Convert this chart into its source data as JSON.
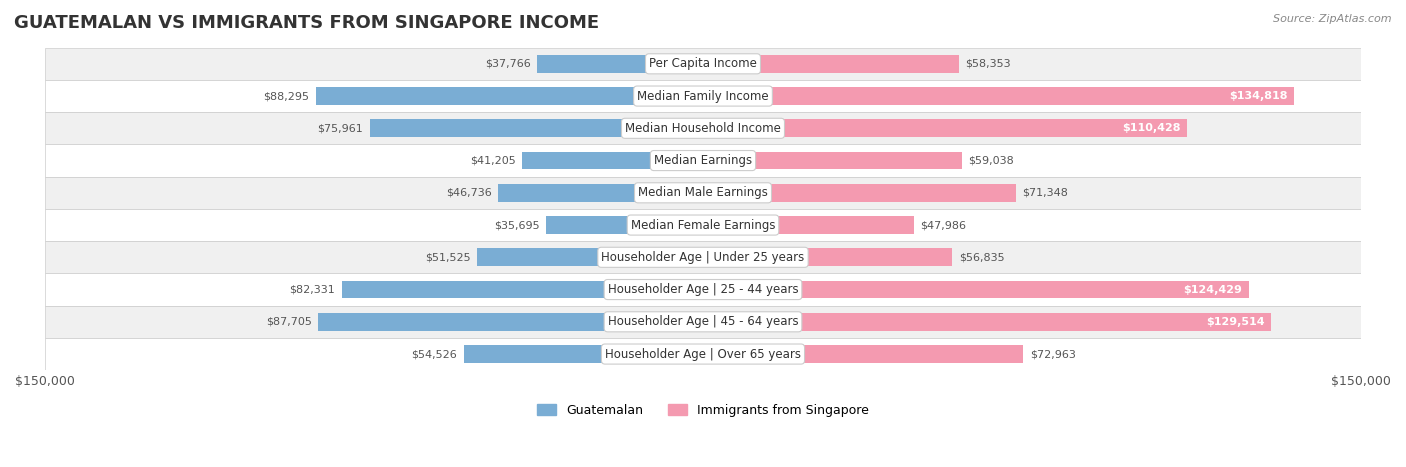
{
  "title": "GUATEMALAN VS IMMIGRANTS FROM SINGAPORE INCOME",
  "source": "Source: ZipAtlas.com",
  "categories": [
    "Per Capita Income",
    "Median Family Income",
    "Median Household Income",
    "Median Earnings",
    "Median Male Earnings",
    "Median Female Earnings",
    "Householder Age | Under 25 years",
    "Householder Age | 25 - 44 years",
    "Householder Age | 45 - 64 years",
    "Householder Age | Over 65 years"
  ],
  "guatemalan": [
    37766,
    88295,
    75961,
    41205,
    46736,
    35695,
    51525,
    82331,
    87705,
    54526
  ],
  "singapore": [
    58353,
    134818,
    110428,
    59038,
    71348,
    47986,
    56835,
    124429,
    129514,
    72963
  ],
  "guatemalan_color": "#7aadd4",
  "singapore_color": "#f49ab0",
  "bar_height": 0.55,
  "xlim": 150000,
  "bg_color": "#f5f5f5",
  "row_bg_color": "#f0f0f0",
  "row_bg_color_alt": "#ffffff",
  "label_bg_color": "#ffffff",
  "title_fontsize": 13,
  "tick_fontsize": 9,
  "label_fontsize": 8.5,
  "value_fontsize": 8
}
